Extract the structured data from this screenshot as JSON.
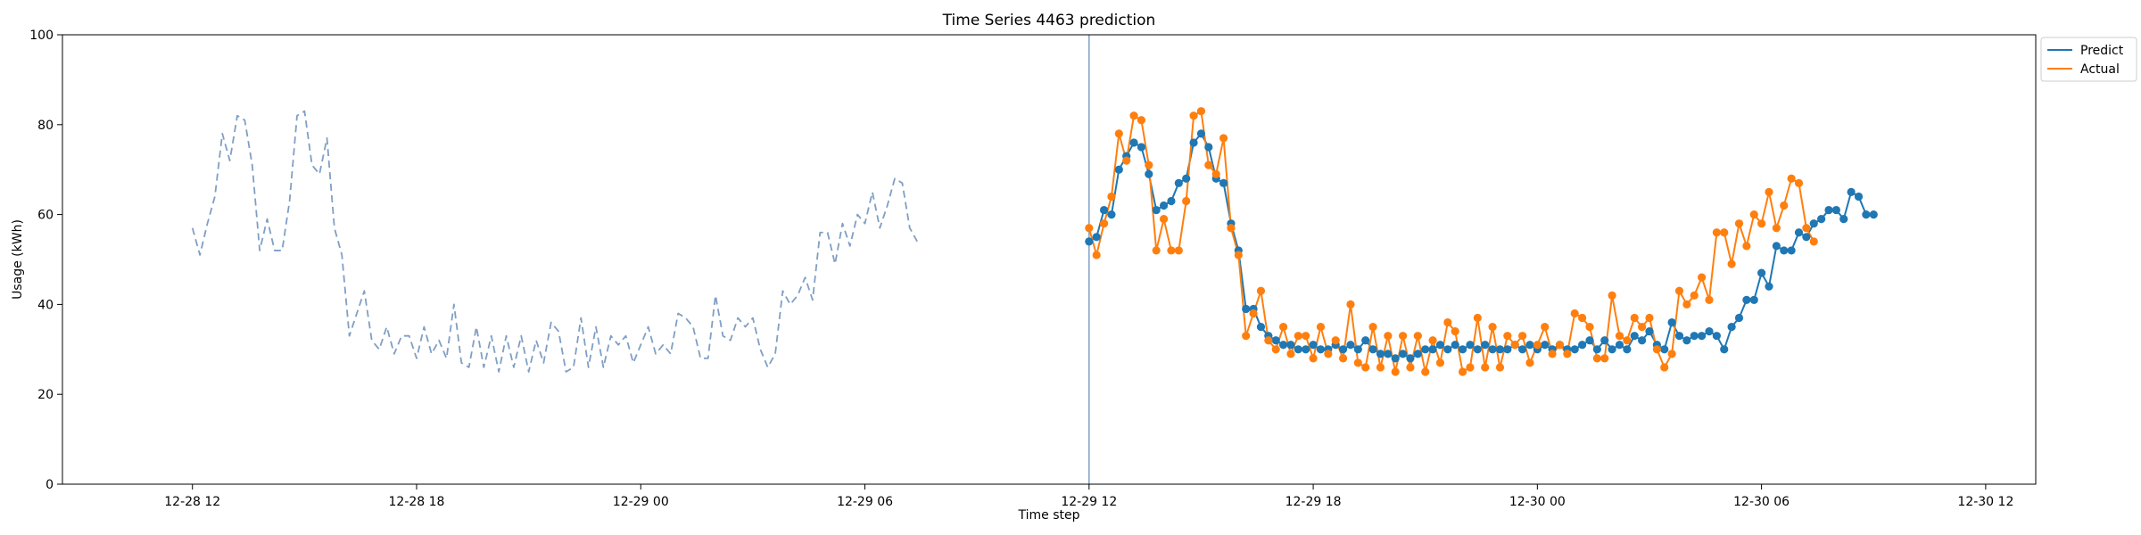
{
  "chart_data": {
    "type": "line",
    "title": "Time Series 4463 prediction",
    "xlabel": "Time step",
    "ylabel": "Usage (kWh)",
    "ylim": [
      0,
      100
    ],
    "xlim": [
      -5.4,
      258.7
    ],
    "y_ticks": [
      0,
      20,
      40,
      60,
      80,
      100
    ],
    "x_ticks": [
      {
        "label": "12-28 12",
        "x": 12
      },
      {
        "label": "12-28 18",
        "x": 42
      },
      {
        "label": "12-29 00",
        "x": 72
      },
      {
        "label": "12-29 06",
        "x": 102
      },
      {
        "label": "12-29 12",
        "x": 132
      },
      {
        "label": "12-29 18",
        "x": 162
      },
      {
        "label": "12-30 00",
        "x": 192
      },
      {
        "label": "12-30 06",
        "x": 222
      },
      {
        "label": "12-30 12",
        "x": 252
      }
    ],
    "forecast_start_x": 132,
    "legend": {
      "position": "top-right",
      "entries": [
        "Predict",
        "Actual"
      ]
    },
    "colors": {
      "history": "#7f9fc4",
      "predict": "#1f77b4",
      "actual": "#ff7f0e",
      "divider": "#7f9fc4"
    },
    "series": [
      {
        "key": "history",
        "x_start": 12,
        "values": [
          57,
          51,
          58,
          64,
          78,
          72,
          82,
          81,
          71,
          52,
          59,
          52,
          52,
          63,
          82,
          83,
          71,
          69,
          77,
          57,
          51,
          33,
          38,
          43,
          32,
          30,
          35,
          29,
          33,
          33,
          28,
          35,
          29,
          32,
          28,
          40,
          27,
          26,
          35,
          26,
          33,
          25,
          33,
          26,
          33,
          25,
          32,
          27,
          36,
          34,
          25,
          26,
          37,
          26,
          35,
          26,
          33,
          31,
          33,
          27,
          31,
          35,
          29,
          31,
          29,
          38,
          37,
          35,
          28,
          28,
          42,
          33,
          32,
          37,
          35,
          37,
          30,
          26,
          29,
          43,
          40,
          42,
          46,
          41,
          56,
          56,
          49,
          58,
          53,
          60,
          58,
          65,
          57,
          62,
          68,
          67,
          57,
          54
        ]
      },
      {
        "name": "Predict",
        "key": "predict",
        "x_start": 132,
        "values": [
          54,
          55,
          61,
          60,
          70,
          73,
          76,
          75,
          69,
          61,
          62,
          63,
          67,
          68,
          76,
          78,
          75,
          68,
          67,
          58,
          52,
          39,
          39,
          35,
          33,
          32,
          31,
          31,
          30,
          30,
          31,
          30,
          30,
          31,
          30,
          31,
          30,
          32,
          30,
          29,
          29,
          28,
          29,
          28,
          29,
          30,
          30,
          31,
          30,
          31,
          30,
          31,
          30,
          31,
          30,
          30,
          30,
          31,
          30,
          31,
          30,
          31,
          30,
          31,
          30,
          30,
          31,
          32,
          30,
          32,
          30,
          31,
          30,
          33,
          32,
          34,
          31,
          30,
          36,
          33,
          32,
          33,
          33,
          34,
          33,
          30,
          35,
          37,
          41,
          41,
          47,
          44,
          53,
          52,
          52,
          56,
          55,
          58,
          59,
          61,
          61,
          59,
          65,
          64,
          60,
          60
        ]
      },
      {
        "name": "Actual",
        "key": "actual",
        "x_start": 132,
        "values": [
          57,
          51,
          58,
          64,
          78,
          72,
          82,
          81,
          71,
          52,
          59,
          52,
          52,
          63,
          82,
          83,
          71,
          69,
          77,
          57,
          51,
          33,
          38,
          43,
          32,
          30,
          35,
          29,
          33,
          33,
          28,
          35,
          29,
          32,
          28,
          40,
          27,
          26,
          35,
          26,
          33,
          25,
          33,
          26,
          33,
          25,
          32,
          27,
          36,
          34,
          25,
          26,
          37,
          26,
          35,
          26,
          33,
          31,
          33,
          27,
          31,
          35,
          29,
          31,
          29,
          38,
          37,
          35,
          28,
          28,
          42,
          33,
          32,
          37,
          35,
          37,
          30,
          26,
          29,
          43,
          40,
          42,
          46,
          41,
          56,
          56,
          49,
          58,
          53,
          60,
          58,
          65,
          57,
          62,
          68,
          67,
          57,
          54
        ]
      }
    ]
  }
}
